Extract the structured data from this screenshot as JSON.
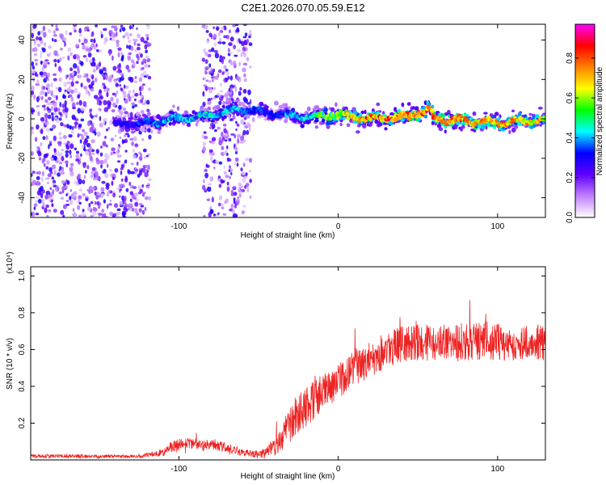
{
  "figure_title": "C2E1.2026.070.05.59.E12",
  "chart_data": [
    {
      "type": "heatmap",
      "name": "spectrogram",
      "title": "C2E1.2026.070.05.59.E12",
      "xlabel": "Height of straight line (km)",
      "ylabel": "Frequency (Hz)",
      "xlim": [
        -193,
        130
      ],
      "ylim": [
        -50,
        48
      ],
      "xticks": [
        -100,
        0,
        100
      ],
      "yticks": [
        -40,
        -20,
        0,
        20,
        40
      ],
      "colorbar": {
        "label": "Normalized spectral amplitude",
        "range": [
          0.0,
          0.97
        ],
        "ticks": [
          0.0,
          0.2,
          0.4,
          0.6,
          0.8
        ],
        "tick_labels": [
          "0.0",
          "0.2",
          "0.4",
          "0.6",
          "0.8"
        ],
        "colormap": [
          "#ffffff",
          "#c080ff",
          "#6000ff",
          "#0000ff",
          "#00ffff",
          "#00ff00",
          "#ffff00",
          "#ff8000",
          "#ff0000",
          "#ff00ff"
        ]
      },
      "ridge": {
        "x": [
          -140,
          -120,
          -100,
          -80,
          -60,
          -55,
          -40,
          -20,
          0,
          20,
          40,
          55,
          57,
          60,
          80,
          100,
          120,
          130
        ],
        "frequency_hz": [
          -3,
          -2,
          0,
          2,
          5,
          4,
          3,
          1,
          2,
          0,
          1,
          4,
          5,
          0,
          -1,
          -2,
          -1,
          -1
        ],
        "amplitude": [
          0.3,
          0.35,
          0.45,
          0.45,
          0.4,
          0.35,
          0.35,
          0.45,
          0.65,
          0.8,
          0.82,
          0.85,
          0.85,
          0.8,
          0.78,
          0.78,
          0.72,
          0.7
        ]
      },
      "noise_regions": [
        {
          "x_range": [
            -193,
            -118
          ],
          "density": "high"
        },
        {
          "x_range": [
            -85,
            -55
          ],
          "density": "medium"
        }
      ]
    },
    {
      "type": "line",
      "name": "snr",
      "xlabel": "Height of straight line (km)",
      "ylabel": "SNR (10 * v/v)",
      "y_multiplier_label": "(x10⁴)",
      "xlim": [
        -193,
        130
      ],
      "ylim": [
        0,
        1.05
      ],
      "xticks": [
        -100,
        0,
        100
      ],
      "yticks": [
        0.2,
        0.4,
        0.6,
        0.8,
        1.0
      ],
      "ytick_labels": [
        "0.2",
        "0.4",
        "0.6",
        "0.8",
        "1.0"
      ],
      "series": [
        {
          "name": "SNR",
          "color": "#ee2222",
          "x": [
            -193,
            -160,
            -125,
            -110,
            -105,
            -95,
            -85,
            -75,
            -60,
            -50,
            -45,
            -40,
            -35,
            -30,
            -25,
            -20,
            -15,
            -10,
            -5,
            0,
            5,
            10,
            20,
            30,
            40,
            50,
            60,
            70,
            80,
            90,
            100,
            110,
            120,
            130
          ],
          "y": [
            0.02,
            0.02,
            0.02,
            0.04,
            0.07,
            0.09,
            0.08,
            0.08,
            0.04,
            0.03,
            0.04,
            0.07,
            0.12,
            0.2,
            0.26,
            0.3,
            0.34,
            0.36,
            0.39,
            0.42,
            0.47,
            0.5,
            0.55,
            0.6,
            0.63,
            0.64,
            0.63,
            0.64,
            0.64,
            0.65,
            0.64,
            0.63,
            0.64,
            0.64
          ],
          "noise_amplitude": [
            0.01,
            0.01,
            0.01,
            0.02,
            0.03,
            0.04,
            0.03,
            0.03,
            0.02,
            0.02,
            0.03,
            0.05,
            0.08,
            0.1,
            0.11,
            0.12,
            0.12,
            0.11,
            0.1,
            0.1,
            0.1,
            0.1,
            0.1,
            0.1,
            0.1,
            0.1,
            0.1,
            0.1,
            0.11,
            0.11,
            0.1,
            0.1,
            0.1,
            0.1
          ]
        }
      ]
    }
  ]
}
